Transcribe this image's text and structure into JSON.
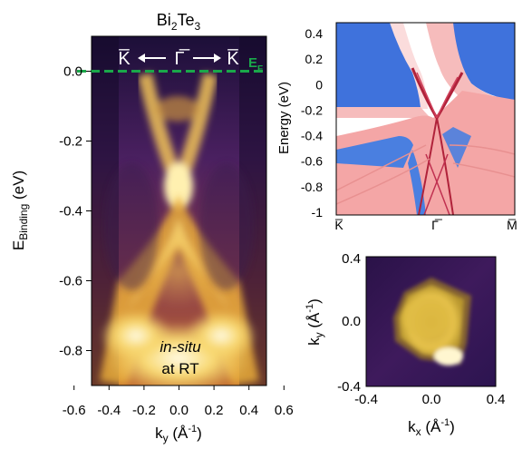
{
  "chart_data": [
    {
      "type": "heatmap",
      "panel": "ARPES intensity map",
      "title_base": "Bi",
      "title_sub1": "2",
      "title_mid": "Te",
      "title_sub2": "3",
      "xlabel_base": "k",
      "xlabel_sub": "y",
      "xlabel_unit": " (Å",
      "xlabel_exp": "-1",
      "xlabel_close": ")",
      "ylabel_base": "E",
      "ylabel_sub": "Binding",
      "ylabel_unit": " (eV)",
      "xlim": [
        -0.5,
        0.5
      ],
      "ylim": [
        -0.9,
        0.1
      ],
      "xticks": [
        -0.6,
        -0.4,
        -0.2,
        0.0,
        0.2,
        0.4,
        0.6
      ],
      "xtick_labels": [
        "-0.6",
        "-0.4",
        "-0.2",
        "0.0",
        "0.2",
        "0.4",
        "0.6"
      ],
      "yticks": [
        0.0,
        -0.2,
        -0.4,
        -0.6,
        -0.8
      ],
      "ytick_labels": [
        "0.0",
        "-0.2",
        "-0.4",
        "-0.6",
        "-0.8"
      ],
      "fermi_level": 0.0,
      "fermi_label_base": "E",
      "fermi_label_sub": "F",
      "fermi_color": "#1aa84a",
      "path_start": "K̅",
      "path_mid": "Γ̅",
      "path_end": "K̅",
      "annotation_line1": "in-situ",
      "annotation_line2": "at RT",
      "dirac_point": [
        0.0,
        -0.35
      ],
      "surface_state_branches": [
        {
          "x": [
            -0.15,
            -0.08,
            0.0
          ],
          "y": [
            0.0,
            -0.18,
            -0.35
          ]
        },
        {
          "x": [
            0.15,
            0.08,
            0.0
          ],
          "y": [
            0.0,
            -0.18,
            -0.35
          ]
        }
      ],
      "colormap": [
        "#1a0a2e",
        "#5a2a70",
        "#a14a3a",
        "#e6a030",
        "#fff6c8"
      ]
    },
    {
      "type": "heatmap",
      "panel": "calculated band structure",
      "ylabel": "Energy (eV)",
      "ylim": [
        -1.0,
        0.4
      ],
      "yticks": [
        0.4,
        0.2,
        0.0,
        -0.2,
        -0.4,
        -0.6,
        -0.8,
        -1.0
      ],
      "ytick_labels": [
        "0.4",
        "0.2",
        "0",
        "-0.2",
        "-0.4",
        "-0.6",
        "-0.8",
        "-1"
      ],
      "xtick_labels": [
        "K̅",
        "Γ̅",
        "M̅"
      ],
      "colors": {
        "bulk": "#f4a6a6",
        "gap": "#4a7fe0",
        "surface": "#b0223a"
      }
    },
    {
      "type": "heatmap",
      "panel": "constant energy contour",
      "xlabel_base": "k",
      "xlabel_sub": "x",
      "xlabel_unit": " (Å",
      "xlabel_exp": "-1",
      "xlabel_close": ")",
      "ylabel_base": "k",
      "ylabel_sub": "y",
      "ylabel_unit": " (Å",
      "ylabel_exp": "-1",
      "ylabel_close": ")",
      "xlim": [
        -0.4,
        0.4
      ],
      "ylim": [
        -0.4,
        0.4
      ],
      "xtick_labels": [
        "-0.4",
        "0.0",
        "0.4"
      ],
      "ytick_labels": [
        "0.4",
        "0.0",
        "-0.4"
      ],
      "contour_shape": "hexagonal",
      "contour_radius": 0.22
    }
  ]
}
